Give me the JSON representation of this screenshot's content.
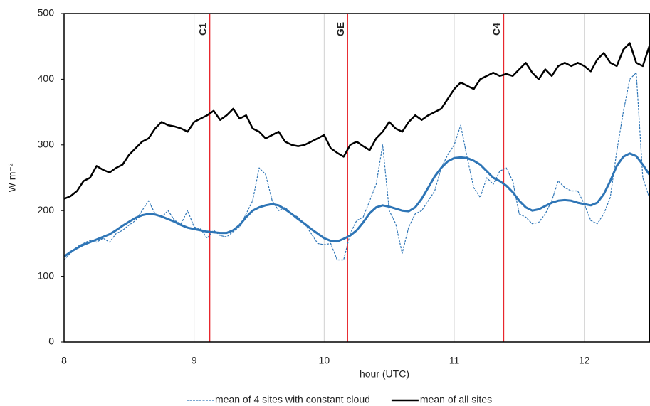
{
  "chart_data": {
    "type": "line",
    "x_label": "hour (UTC)",
    "y_label": "W m⁻²",
    "x": [
      8,
      8.05,
      8.1,
      8.15,
      8.2,
      8.25,
      8.3,
      8.35,
      8.4,
      8.45,
      8.5,
      8.55,
      8.6,
      8.65,
      8.7,
      8.75,
      8.8,
      8.85,
      8.9,
      8.95,
      9,
      9.05,
      9.1,
      9.15,
      9.2,
      9.25,
      9.3,
      9.35,
      9.4,
      9.45,
      9.5,
      9.55,
      9.6,
      9.65,
      9.7,
      9.75,
      9.8,
      9.85,
      9.9,
      9.95,
      10,
      10.05,
      10.1,
      10.15,
      10.2,
      10.25,
      10.3,
      10.35,
      10.4,
      10.45,
      10.5,
      10.55,
      10.6,
      10.65,
      10.7,
      10.75,
      10.8,
      10.85,
      10.9,
      10.95,
      11,
      11.05,
      11.1,
      11.15,
      11.2,
      11.25,
      11.3,
      11.35,
      11.4,
      11.45,
      11.5,
      11.55,
      11.6,
      11.65,
      11.7,
      11.75,
      11.8,
      11.85,
      11.9,
      11.95,
      12,
      12.05,
      12.1,
      12.15,
      12.2,
      12.25,
      12.3,
      12.35,
      12.4,
      12.45,
      12.5
    ],
    "series": [
      {
        "name": "mean of 4 sites with constant cloud",
        "color": "#2e75b6",
        "style": "dashed",
        "values": [
          125,
          135,
          145,
          150,
          155,
          152,
          158,
          152,
          165,
          170,
          178,
          185,
          200,
          215,
          195,
          190,
          200,
          185,
          180,
          200,
          175,
          172,
          158,
          170,
          162,
          160,
          168,
          175,
          195,
          215,
          265,
          255,
          215,
          200,
          205,
          195,
          190,
          180,
          165,
          150,
          148,
          150,
          125,
          125,
          165,
          185,
          190,
          215,
          240,
          300,
          200,
          180,
          135,
          175,
          195,
          200,
          215,
          230,
          265,
          285,
          300,
          330,
          280,
          235,
          220,
          250,
          240,
          260,
          265,
          245,
          195,
          190,
          180,
          182,
          195,
          215,
          245,
          235,
          230,
          230,
          210,
          185,
          180,
          195,
          220,
          290,
          350,
          400,
          410,
          250,
          220
        ]
      },
      {
        "name": "mean of all sites",
        "color": "#000000",
        "style": "solid",
        "values": [
          218,
          222,
          230,
          245,
          250,
          268,
          262,
          258,
          265,
          270,
          285,
          295,
          305,
          310,
          325,
          335,
          330,
          328,
          325,
          320,
          335,
          340,
          345,
          352,
          338,
          345,
          355,
          340,
          345,
          325,
          320,
          310,
          315,
          320,
          305,
          300,
          298,
          300,
          305,
          310,
          315,
          295,
          288,
          282,
          300,
          305,
          298,
          292,
          310,
          320,
          335,
          325,
          320,
          335,
          345,
          338,
          345,
          350,
          355,
          370,
          385,
          395,
          390,
          385,
          400,
          405,
          410,
          405,
          408,
          405,
          415,
          425,
          410,
          400,
          415,
          405,
          420,
          425,
          420,
          425,
          420,
          412,
          430,
          440,
          425,
          420,
          445,
          455,
          425,
          420,
          450
        ]
      },
      {
        "color": "#2e75b6",
        "style": "thick",
        "values": [
          130,
          137,
          143,
          148,
          152,
          156,
          160,
          164,
          170,
          177,
          183,
          189,
          193,
          195,
          194,
          191,
          187,
          183,
          178,
          174,
          172,
          170,
          168,
          167,
          166,
          166,
          170,
          178,
          190,
          200,
          205,
          208,
          210,
          208,
          202,
          195,
          187,
          180,
          172,
          165,
          158,
          154,
          153,
          157,
          162,
          170,
          182,
          196,
          205,
          208,
          206,
          203,
          200,
          199,
          205,
          218,
          235,
          252,
          265,
          275,
          280,
          281,
          280,
          276,
          270,
          260,
          250,
          245,
          238,
          228,
          215,
          205,
          200,
          202,
          207,
          212,
          215,
          216,
          215,
          212,
          210,
          208,
          212,
          225,
          245,
          268,
          282,
          287,
          283,
          270,
          255
        ]
      }
    ],
    "annotations": [
      {
        "x": 9.12,
        "label": "C1",
        "color": "#e8262d"
      },
      {
        "x": 10.18,
        "label": "GE",
        "color": "#e8262d"
      },
      {
        "x": 11.38,
        "label": "C4",
        "color": "#e8262d"
      }
    ],
    "xlim": [
      8,
      12.5
    ],
    "ylim": [
      0,
      500
    ],
    "xticks": [
      8,
      9,
      10,
      11,
      12
    ],
    "yticks": [
      0,
      100,
      200,
      300,
      400,
      500
    ],
    "grid": "x",
    "legend": "bottom"
  }
}
